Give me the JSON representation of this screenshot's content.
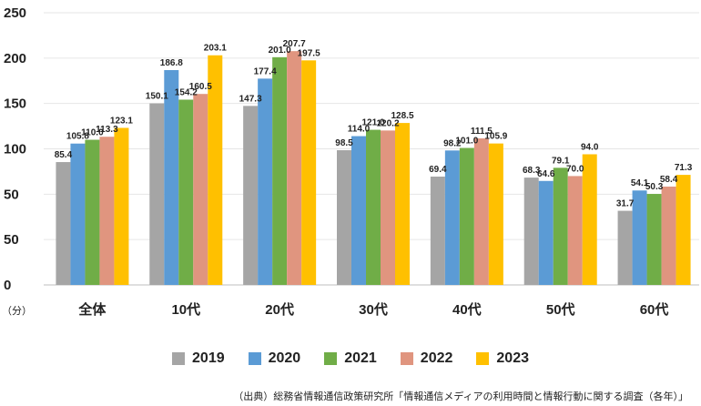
{
  "chart_data": {
    "type": "bar",
    "categories": [
      "全体",
      "10代",
      "20代",
      "30代",
      "40代",
      "50代",
      "60代"
    ],
    "series": [
      {
        "name": "2019",
        "color": "#a5a5a5",
        "values": [
          85.4,
          150.1,
          147.3,
          98.5,
          69.4,
          68.3,
          31.7
        ]
      },
      {
        "name": "2020",
        "color": "#5b9bd5",
        "values": [
          105.8,
          186.8,
          177.4,
          114.0,
          98.2,
          64.6,
          54.1
        ]
      },
      {
        "name": "2021",
        "color": "#70ad47",
        "values": [
          110.0,
          154.2,
          201.0,
          121.0,
          101.0,
          79.1,
          50.3
        ]
      },
      {
        "name": "2022",
        "color": "#e0957f",
        "values": [
          113.3,
          160.5,
          207.7,
          120.2,
          111.5,
          70.0,
          58.4
        ]
      },
      {
        "name": "2023",
        "color": "#ffc000",
        "values": [
          123.1,
          203.1,
          197.5,
          128.5,
          105.9,
          94.0,
          71.3
        ]
      }
    ],
    "yticks": [
      "0",
      "50",
      "50",
      "100",
      "150",
      "200",
      "250"
    ],
    "ylim": [
      -50,
      250
    ],
    "unit_label": "（分）",
    "grid": true,
    "legend_position": "bottom"
  },
  "source": "（出典）総務省情報通信政策研究所「情報通信メディアの利用時間と情報行動に関する調査（各年）」"
}
